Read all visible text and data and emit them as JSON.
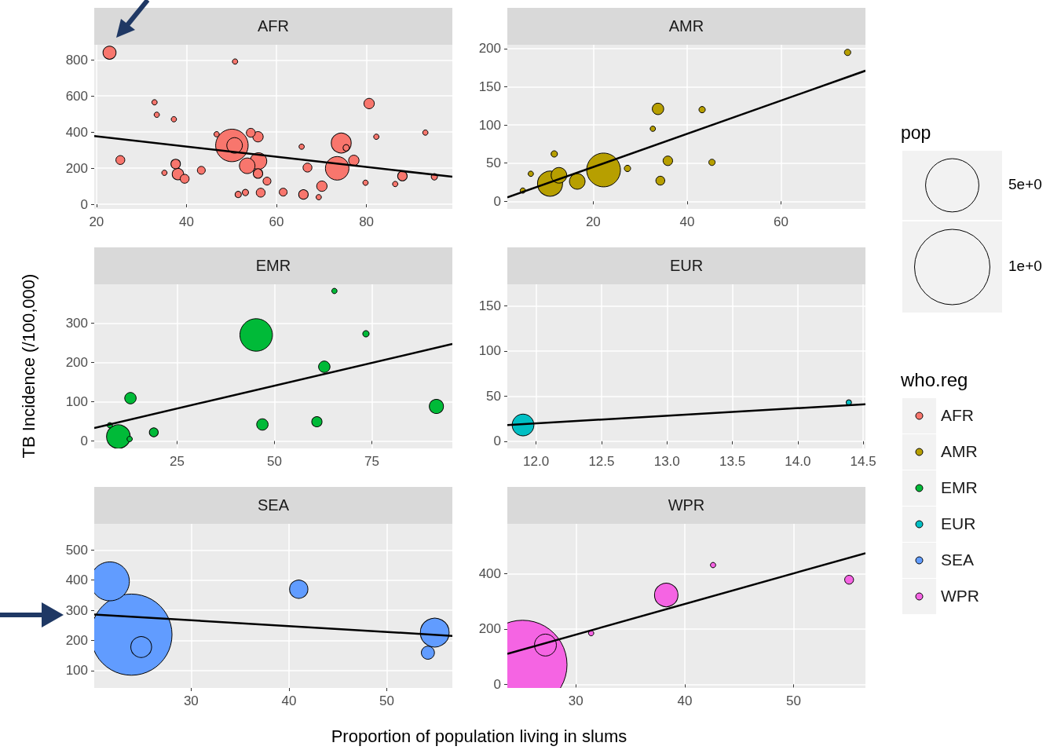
{
  "chart_data": [
    {
      "type": "bubble",
      "title": "AFR",
      "xlabel": "Proportion of population living in slums",
      "ylabel": "TB Incidence (/100,000)",
      "legend_title": "who.reg",
      "annotations": [
        "pop"
      ],
      "size_legend": [
        {
          "value": 500000000,
          "label": "5e+0"
        },
        {
          "value": 1000000000,
          "label": "1e+0"
        }
      ],
      "xlim": [
        19.5,
        99.1
      ],
      "xticks": [
        20,
        40,
        60,
        80
      ],
      "ylim": [
        -26,
        884
      ],
      "yticks": [
        0,
        200,
        400,
        600,
        800
      ],
      "grid": true,
      "legend": "right",
      "marker": "circle",
      "series": [
        {
          "name": "AFR",
          "color": "#f8766d",
          "x": [
            50.1,
            73.5,
            74.4,
            50.7,
            56.0,
            53.5,
            22.9,
            38.1,
            70.1,
            80.6,
            55.9,
            37.6,
            55.9,
            54.3,
            25.3,
            66.0,
            43.3,
            56.5,
            39.6,
            66.9,
            77.2,
            61.5,
            57.9,
            88.0,
            51.5,
            53.1,
            95.1,
            75.5,
            46.7,
            65.6,
            93.1,
            79.8,
            86.4,
            69.4,
            50.8,
            32.9,
            33.4,
            37.2,
            35.1,
            82.2
          ],
          "values": [
            326,
            199,
            339,
            326,
            239,
            213,
            840,
            167,
            100,
            558,
            374,
            223,
            170,
            396,
            245,
            54,
            188,
            64,
            141,
            203,
            243,
            67,
            128,
            156,
            54,
            65,
            152,
            313,
            388,
            319,
            397,
            119,
            112,
            39,
            791,
            565,
            496,
            471,
            174,
            374
          ],
          "sizes": [
            186000000,
            98000000,
            70000000,
            43000000,
            49000000,
            43000000,
            30000000,
            23000000,
            19000000,
            19000000,
            19000000,
            16000000,
            16000000,
            14000000,
            14000000,
            16000000,
            11000000,
            14000000,
            14000000,
            14000000,
            19000000,
            11000000,
            11000000,
            16000000,
            7000000,
            7000000,
            7000000,
            7000000,
            5000000,
            5000000,
            5000000,
            5000000,
            5000000,
            5000000,
            5000000,
            5000000,
            5000000,
            5000000,
            5000000,
            5000000
          ]
        },
        {
          "type": "line",
          "color": "#000000",
          "marker": "none",
          "x": [
            19.5,
            99.1
          ],
          "values": [
            378,
            152
          ]
        }
      ]
    },
    {
      "type": "bubble",
      "title": "AMR",
      "xlim": [
        1.7,
        78.0
      ],
      "xticks": [
        20,
        40,
        60
      ],
      "ylim": [
        -10,
        205
      ],
      "yticks": [
        0,
        50,
        100,
        150,
        200
      ],
      "grid": true,
      "legend": "right",
      "marker": "circle",
      "series": [
        {
          "name": "AMR",
          "color": "#b79f00",
          "x": [
            22.2,
            10.8,
            12.7,
            16.6,
            33.8,
            35.9,
            34.3,
            74.2,
            43.2,
            11.7,
            27.3,
            45.3,
            5.0,
            6.7,
            32.7
          ],
          "values": [
            41,
            23,
            34,
            26,
            121,
            53,
            27,
            195,
            120,
            62,
            43,
            51,
            14,
            36,
            95
          ],
          "sizes": [
            1,
            0.55,
            0.215,
            0.215,
            0.115,
            0.08,
            0.07,
            0.035,
            0.035,
            0.035,
            0.035,
            0.035,
            0.025,
            0.025,
            0.025
          ]
        },
        {
          "type": "line",
          "color": "#000000",
          "marker": "none",
          "x": [
            1.7,
            78.0
          ],
          "values": [
            5,
            171
          ]
        }
      ]
    },
    {
      "type": "bubble",
      "title": "EMR",
      "xlim": [
        3.7,
        95.7
      ],
      "xticks": [
        25,
        50,
        75
      ],
      "ylim": [
        -19,
        399
      ],
      "yticks": [
        0,
        100,
        200,
        300
      ],
      "grid": true,
      "legend": "right",
      "marker": "circle",
      "series": [
        {
          "name": "EMR",
          "color": "#00ba38",
          "x": [
            45.3,
            9.9,
            91.6,
            13.0,
            62.8,
            46.9,
            60.9,
            19.0,
            73.5,
            12.8,
            7.7,
            65.4
          ],
          "values": [
            270,
            11,
            88,
            109,
            189,
            42,
            49,
            22,
            273,
            5,
            40,
            382
          ],
          "sizes": [
            1,
            0.53,
            0.19,
            0.124,
            0.124,
            0.124,
            0.1,
            0.075,
            0.038,
            0.027,
            0.027,
            0.027
          ]
        },
        {
          "type": "line",
          "color": "#000000",
          "marker": "none",
          "x": [
            3.7,
            95.7
          ],
          "values": [
            33,
            247
          ]
        }
      ]
    },
    {
      "type": "bubble",
      "title": "EUR",
      "xlim": [
        11.78,
        14.517
      ],
      "xticks": [
        {
          "value": 12,
          "label": "12.0"
        },
        12.5,
        {
          "value": 13,
          "label": "13.0"
        },
        13.5,
        {
          "value": 14,
          "label": "14.0"
        },
        14.5
      ],
      "ylim": [
        -8,
        174
      ],
      "yticks": [
        0,
        50,
        100,
        150
      ],
      "grid": true,
      "legend": "right",
      "marker": "circle",
      "series": [
        {
          "name": "EUR",
          "color": "#00bfc4",
          "x": [
            11.9,
            14.39
          ],
          "values": [
            18,
            43
          ],
          "sizes": [
            1,
            0.06
          ]
        },
        {
          "type": "line",
          "color": "#000000",
          "marker": "none",
          "x": [
            11.78,
            14.517
          ],
          "values": [
            18,
            41
          ]
        }
      ]
    },
    {
      "type": "bubble",
      "title": "SEA",
      "xlim": [
        20.1,
        56.7
      ],
      "xticks": [
        30,
        40,
        50
      ],
      "ylim": [
        42,
        587
      ],
      "yticks": [
        100,
        200,
        300,
        400,
        500
      ],
      "grid": true,
      "legend": "right",
      "marker": "circle",
      "series": [
        {
          "name": "SEA",
          "color": "#619cff",
          "x": [
            23.9,
            21.7,
            54.9,
            24.9,
            41.0,
            54.2
          ],
          "values": [
            219,
            396,
            226,
            178,
            370,
            159
          ],
          "sizes": [
            1,
            0.23,
            0.126,
            0.066,
            0.051,
            0.026
          ]
        },
        {
          "type": "line",
          "color": "#000000",
          "marker": "none",
          "x": [
            20.1,
            56.7
          ],
          "values": [
            286,
            215
          ]
        }
      ]
    },
    {
      "type": "bubble",
      "title": "WPR",
      "xlim": [
        23.7,
        56.6
      ],
      "xticks": [
        30,
        40,
        50
      ],
      "ylim": [
        -13,
        580
      ],
      "yticks": [
        0,
        200,
        400
      ],
      "grid": true,
      "legend": "right",
      "marker": "circle",
      "series": [
        {
          "name": "WPR",
          "color": "#f564e3",
          "x": [
            25.1,
            38.3,
            27.2,
            55.1,
            31.4,
            42.6
          ],
          "values": [
            71,
            323,
            142,
            378,
            185,
            431
          ],
          "sizes": [
            1,
            0.07,
            0.061,
            0.01,
            0.0036,
            0.0036
          ]
        },
        {
          "type": "line",
          "color": "#000000",
          "marker": "none",
          "x": [
            23.7,
            56.6
          ],
          "values": [
            110,
            474
          ]
        }
      ]
    }
  ]
}
